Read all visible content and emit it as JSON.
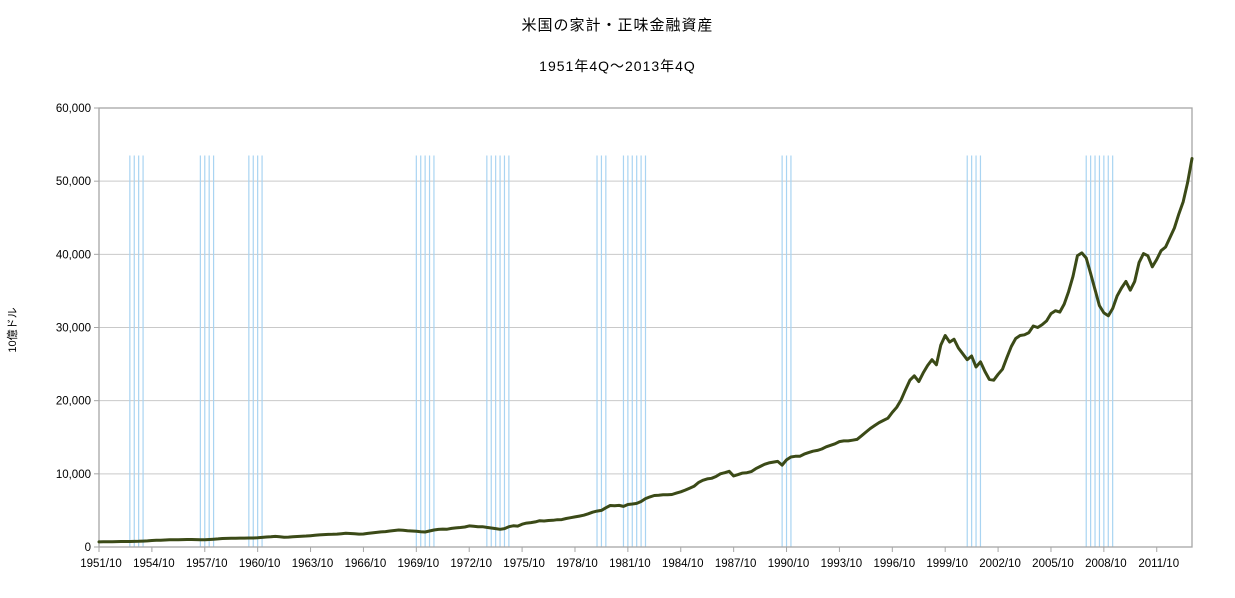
{
  "chart_data": {
    "type": "line",
    "title": "米国の家計・正味金融資産",
    "subtitle": "1951年4Q～2013年4Q",
    "ylabel": "10億ドル",
    "ylim": [
      0,
      60000
    ],
    "ytick_step": 10000,
    "grid": true,
    "legend_position": "none",
    "x_start": 1951.75,
    "x_end": 2013.75,
    "x_tick_interval_years": 3,
    "x_tick_labels": [
      "1951/10",
      "1954/10",
      "1957/10",
      "1960/10",
      "1963/10",
      "1966/10",
      "1969/10",
      "1972/10",
      "1975/10",
      "1978/10",
      "1981/10",
      "1984/10",
      "1987/10",
      "1990/10",
      "1993/10",
      "1996/10",
      "1999/10",
      "2002/10",
      "2005/10",
      "2008/10",
      "2011/10"
    ],
    "series": [
      {
        "name": "米国の家計・正味金融資産",
        "color": "#3B4A17",
        "line_width": 3,
        "freq": "quarterly",
        "start_label": "1951/10",
        "step_years": 0.25,
        "values": [
          700,
          710,
          715,
          725,
          740,
          745,
          750,
          750,
          760,
          775,
          800,
          840,
          890,
          915,
          935,
          960,
          980,
          990,
          1000,
          1005,
          1020,
          1020,
          1015,
          1000,
          990,
          1020,
          1060,
          1110,
          1160,
          1180,
          1195,
          1200,
          1210,
          1215,
          1225,
          1230,
          1260,
          1310,
          1360,
          1390,
          1450,
          1390,
          1320,
          1350,
          1390,
          1430,
          1470,
          1500,
          1550,
          1600,
          1650,
          1690,
          1720,
          1740,
          1760,
          1820,
          1870,
          1850,
          1810,
          1760,
          1780,
          1860,
          1930,
          2000,
          2070,
          2100,
          2180,
          2250,
          2320,
          2280,
          2220,
          2180,
          2150,
          2090,
          2050,
          2180,
          2330,
          2400,
          2440,
          2430,
          2540,
          2610,
          2660,
          2740,
          2880,
          2830,
          2760,
          2780,
          2680,
          2600,
          2520,
          2420,
          2510,
          2780,
          2900,
          2850,
          3110,
          3270,
          3340,
          3430,
          3600,
          3560,
          3620,
          3650,
          3730,
          3740,
          3890,
          4010,
          4110,
          4230,
          4350,
          4540,
          4750,
          4900,
          5000,
          5360,
          5670,
          5640,
          5680,
          5550,
          5810,
          5880,
          5960,
          6220,
          6610,
          6850,
          7040,
          7070,
          7140,
          7130,
          7180,
          7370,
          7540,
          7780,
          8040,
          8300,
          8800,
          9120,
          9310,
          9390,
          9640,
          10000,
          10150,
          10350,
          9700,
          9900,
          10100,
          10150,
          10300,
          10700,
          11000,
          11300,
          11500,
          11600,
          11700,
          11200,
          11900,
          12300,
          12400,
          12400,
          12700,
          12900,
          13100,
          13200,
          13400,
          13700,
          13900,
          14100,
          14400,
          14500,
          14500,
          14600,
          14700,
          15200,
          15700,
          16200,
          16600,
          17000,
          17300,
          17600,
          18400,
          19100,
          20100,
          21500,
          22800,
          23400,
          22600,
          23800,
          24800,
          25600,
          24900,
          27600,
          28900,
          28000,
          28400,
          27200,
          26400,
          25600,
          26100,
          24600,
          25300,
          24000,
          22900,
          22800,
          23600,
          24300,
          25900,
          27400,
          28500,
          28900,
          29000,
          29300,
          30200,
          30000,
          30400,
          30900,
          31900,
          32300,
          32100,
          33200,
          34900,
          37000,
          39800,
          40200,
          39500,
          37400,
          35200,
          33000,
          32000,
          31600,
          32600,
          34300,
          35400,
          36300,
          35100,
          36300,
          38900,
          40100,
          39800,
          38300,
          39300,
          40500,
          41000,
          42300,
          43600,
          45500,
          47200,
          49800,
          53100
        ]
      }
    ],
    "recession_markers": {
      "style": "vertical-line-per-quarter",
      "color": "#A9D4F2",
      "top_value": 53500,
      "ranges": [
        [
          1953.5,
          1954.25
        ],
        [
          1957.5,
          1958.25
        ],
        [
          1960.25,
          1961.0
        ],
        [
          1969.75,
          1970.75
        ],
        [
          1973.75,
          1975.0
        ],
        [
          1980.0,
          1980.5
        ],
        [
          1981.5,
          1982.75
        ],
        [
          1990.5,
          1991.0
        ],
        [
          2001.0,
          2001.75
        ],
        [
          2007.75,
          2009.25
        ]
      ]
    },
    "colors": {
      "background": "#FFFFFF",
      "gridline": "#C9C9C9",
      "axis_border": "#A6A6A6",
      "text": "#000000"
    }
  }
}
